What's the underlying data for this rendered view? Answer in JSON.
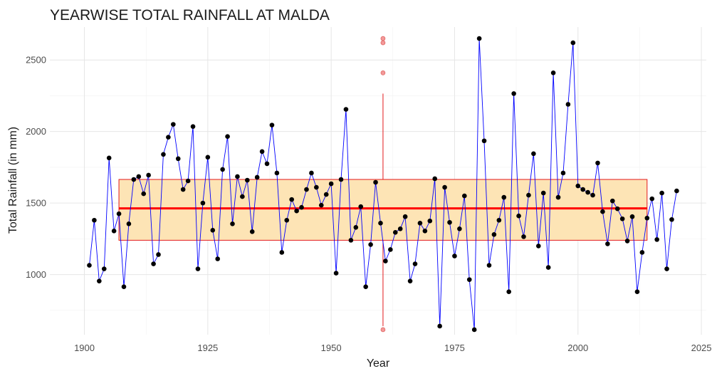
{
  "chart_data": {
    "type": "line",
    "title": "YEARWISE TOTAL RAINFALL AT MALDA",
    "xlabel": "Year",
    "ylabel": "Total Rainfall (in mm)",
    "xlim": [
      1893,
      2026
    ],
    "ylim": [
      580,
      2730
    ],
    "x_ticks": [
      1900,
      1925,
      1950,
      1975,
      2000,
      2025
    ],
    "y_ticks": [
      1000,
      1500,
      2000,
      2500
    ],
    "grid": true,
    "legend": "none",
    "colors": {
      "line": "#0000ff",
      "points": "#000000",
      "box_fill": "#fde4b5",
      "box_border": "#e31a1c",
      "median": "#ff0000",
      "outliers": "#f08080"
    },
    "series": [
      {
        "x": [
          1901,
          1902,
          1903,
          1904,
          1905,
          1906,
          1907,
          1908,
          1909,
          1910,
          1911,
          1912,
          1913,
          1914,
          1915,
          1916,
          1917,
          1918,
          1919,
          1920,
          1921,
          1922,
          1923,
          1924,
          1925,
          1926,
          1927,
          1928,
          1929,
          1930,
          1931,
          1932,
          1933,
          1934,
          1935,
          1936,
          1937,
          1938,
          1939,
          1940,
          1941,
          1942,
          1943,
          1944,
          1945,
          1946,
          1947,
          1948,
          1949,
          1950,
          1951,
          1952,
          1953,
          1954,
          1955,
          1956,
          1957,
          1958,
          1959,
          1960,
          1961,
          1962,
          1963,
          1964,
          1965,
          1966,
          1967,
          1968,
          1969,
          1970,
          1971,
          1972,
          1973,
          1974,
          1975,
          1976,
          1977,
          1978,
          1979,
          1980,
          1981,
          1982,
          1983,
          1984,
          1985,
          1986,
          1987,
          1988,
          1989,
          1990,
          1991,
          1992,
          1993,
          1994,
          1995,
          1996,
          1997,
          1998,
          1999,
          2000,
          2001,
          2002,
          2003,
          2004,
          2005,
          2006,
          2007,
          2008,
          2009,
          2010,
          2011,
          2012,
          2013,
          2014,
          2015,
          2016,
          2017,
          2018,
          2019,
          2020
        ],
        "values": [
          1065,
          1380,
          955,
          1040,
          1815,
          1305,
          1425,
          915,
          1355,
          1665,
          1685,
          1565,
          1695,
          1075,
          1140,
          1840,
          1960,
          2050,
          1810,
          1595,
          1655,
          2035,
          1040,
          1500,
          1820,
          1310,
          1110,
          1735,
          1965,
          1355,
          1685,
          1545,
          1660,
          1300,
          1680,
          1860,
          1775,
          2045,
          1710,
          1155,
          1380,
          1525,
          1445,
          1470,
          1595,
          1710,
          1610,
          1485,
          1560,
          1635,
          1010,
          1665,
          2155,
          1240,
          1330,
          1475,
          915,
          1210,
          1645,
          1360,
          1095,
          1175,
          1295,
          1320,
          1405,
          955,
          1075,
          1360,
          1305,
          1375,
          1670,
          640,
          1610,
          1365,
          1130,
          1320,
          1550,
          965,
          615,
          2650,
          1935,
          1065,
          1280,
          1380,
          1540,
          880,
          2265,
          1410,
          1265,
          1555,
          1845,
          1200,
          1570,
          1050,
          2410,
          1540,
          1710,
          2190,
          2620,
          1620,
          1595,
          1575,
          1555,
          1780,
          1440,
          1215,
          1515,
          1460,
          1390,
          1235,
          1405,
          880,
          1155,
          1395,
          1530,
          1245,
          1570,
          1040,
          1385,
          1585
        ]
      }
    ],
    "boxplot": {
      "x_center": 1960.5,
      "x_range": [
        1907,
        2014
      ],
      "q1": 1240,
      "median": 1463,
      "q3": 1665,
      "whisker_low": 640,
      "whisker_high": 2265,
      "outliers": [
        615,
        2410,
        2620,
        2650
      ]
    }
  }
}
